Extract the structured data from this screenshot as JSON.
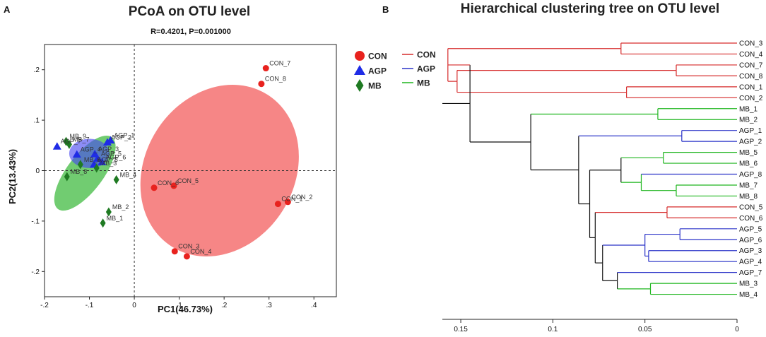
{
  "chart_data": [
    {
      "type": "scatter",
      "panel_label": "A",
      "title": "PCoA on OTU level",
      "subtitle": "R=0.4201, P=0.001000",
      "xlabel": "PC1(46.73%)",
      "ylabel": "PC2(13.43%)",
      "xlim": [
        -0.2,
        0.45
      ],
      "ylim": [
        -0.25,
        0.25
      ],
      "xticks": [
        -0.2,
        -0.1,
        0,
        0.1,
        0.2,
        0.3,
        0.4
      ],
      "yticks": [
        -0.2,
        -0.1,
        0,
        0.1,
        0.2
      ],
      "legend": [
        "CON",
        "AGP",
        "MB"
      ],
      "colors": {
        "CON": "#e8221e",
        "AGP": "#1f2ce6",
        "MB": "#1f7a22"
      },
      "series": [
        {
          "name": "CON",
          "marker": "circle",
          "points": [
            {
              "label": "CON_7",
              "x": 0.293,
              "y": 0.203
            },
            {
              "label": "CON_8",
              "x": 0.283,
              "y": 0.172
            },
            {
              "label": "CON_5",
              "x": 0.088,
              "y": -0.03
            },
            {
              "label": "CON_6",
              "x": 0.044,
              "y": -0.034
            },
            {
              "label": "CON_1",
              "x": 0.32,
              "y": -0.066
            },
            {
              "label": "CON_2",
              "x": 0.342,
              "y": -0.062
            },
            {
              "label": "CON_3",
              "x": 0.09,
              "y": -0.16
            },
            {
              "label": "CON_4",
              "x": 0.117,
              "y": -0.17
            }
          ]
        },
        {
          "name": "AGP",
          "marker": "triangle",
          "points": [
            {
              "label": "AGP_1",
              "x": -0.053,
              "y": 0.06
            },
            {
              "label": "AGP_2",
              "x": -0.06,
              "y": 0.056
            },
            {
              "label": "AGP_3",
              "x": -0.088,
              "y": 0.033
            },
            {
              "label": "AGP_4",
              "x": -0.128,
              "y": 0.032
            },
            {
              "label": "AGP_5",
              "x": -0.082,
              "y": 0.024
            },
            {
              "label": "AGP_6",
              "x": -0.072,
              "y": 0.017
            },
            {
              "label": "AGP_7",
              "x": -0.172,
              "y": 0.048
            },
            {
              "label": "AGP_8",
              "x": -0.09,
              "y": 0.012
            }
          ]
        },
        {
          "name": "MB",
          "marker": "diamond",
          "points": [
            {
              "label": "MB_9",
              "x": -0.152,
              "y": 0.058
            },
            {
              "label": "MB_7",
              "x": -0.145,
              "y": 0.052
            },
            {
              "label": "MB_6",
              "x": -0.12,
              "y": 0.012
            },
            {
              "label": "MB_8",
              "x": -0.15,
              "y": -0.012
            },
            {
              "label": "MB_3",
              "x": -0.084,
              "y": 0.005
            },
            {
              "label": "MB_4",
              "x": -0.04,
              "y": -0.018
            },
            {
              "label": "MB_2",
              "x": -0.057,
              "y": -0.082
            },
            {
              "label": "MB_1",
              "x": -0.07,
              "y": -0.104
            }
          ]
        }
      ],
      "ellipses": [
        {
          "group": "CON",
          "cx": 0.19,
          "cy": 0.0,
          "rx": 0.2,
          "ry": 0.148,
          "angle_deg": -58
        },
        {
          "group": "MB",
          "cx": -0.11,
          "cy": -0.005,
          "rx": 0.1,
          "ry": 0.036,
          "angle_deg": -53
        },
        {
          "group": "AGP",
          "cx": -0.1,
          "cy": 0.034,
          "rx": 0.045,
          "ry": 0.029,
          "angle_deg": 0
        }
      ]
    },
    {
      "type": "dendrogram",
      "panel_label": "B",
      "title": "Hierarchical clustering tree on OTU level",
      "xlim": [
        0.16,
        0
      ],
      "xticks": [
        0.15,
        0.1,
        0.05,
        0
      ],
      "legend": [
        "CON",
        "AGP",
        "MB"
      ],
      "colors": {
        "CON": "#d62a2a",
        "AGP": "#2a33c8",
        "MB": "#1db51d",
        "internal": "#111111"
      },
      "leaves": [
        "CON_3",
        "CON_4",
        "CON_7",
        "CON_8",
        "CON_1",
        "CON_2",
        "MB_1",
        "MB_2",
        "AGP_1",
        "AGP_2",
        "MB_5",
        "MB_6",
        "AGP_8",
        "MB_7",
        "MB_8",
        "CON_5",
        "CON_6",
        "AGP_5",
        "AGP_6",
        "AGP_3",
        "AGP_4",
        "AGP_7",
        "MB_3",
        "MB_4"
      ],
      "merges": [
        {
          "id": "n1",
          "children": [
            "CON_3",
            "CON_4"
          ],
          "height": 0.063,
          "group": "CON"
        },
        {
          "id": "n2",
          "children": [
            "CON_7",
            "CON_8"
          ],
          "height": 0.033,
          "group": "CON"
        },
        {
          "id": "n3",
          "children": [
            "CON_1",
            "CON_2"
          ],
          "height": 0.06,
          "group": "CON"
        },
        {
          "id": "n4",
          "children": [
            "n2",
            "n3"
          ],
          "height": 0.152,
          "group": "CON"
        },
        {
          "id": "n5",
          "children": [
            "n1",
            "n4"
          ],
          "height": 0.157,
          "group": "CON"
        },
        {
          "id": "n6",
          "children": [
            "MB_1",
            "MB_2"
          ],
          "height": 0.043,
          "group": "MB"
        },
        {
          "id": "n7",
          "children": [
            "AGP_1",
            "AGP_2"
          ],
          "height": 0.03,
          "group": "AGP"
        },
        {
          "id": "n8",
          "children": [
            "MB_5",
            "MB_6"
          ],
          "height": 0.04,
          "group": "MB"
        },
        {
          "id": "n9",
          "children": [
            "MB_7",
            "MB_8"
          ],
          "height": 0.033,
          "group": "MB"
        },
        {
          "id": "n10",
          "children": [
            "AGP_8",
            "n9"
          ],
          "height": 0.052,
          "group": "MB"
        },
        {
          "id": "n11",
          "children": [
            "n8",
            "n10"
          ],
          "height": 0.063
        },
        {
          "id": "n12",
          "children": [
            "CON_5",
            "CON_6"
          ],
          "height": 0.038,
          "group": "CON"
        },
        {
          "id": "n13",
          "children": [
            "AGP_5",
            "AGP_6"
          ],
          "height": 0.031,
          "group": "AGP"
        },
        {
          "id": "n14",
          "children": [
            "AGP_3",
            "AGP_4"
          ],
          "height": 0.048,
          "group": "AGP"
        },
        {
          "id": "n15",
          "children": [
            "n13",
            "n14"
          ],
          "height": 0.05,
          "group": "AGP"
        },
        {
          "id": "n16",
          "children": [
            "MB_3",
            "MB_4"
          ],
          "height": 0.047,
          "group": "MB"
        },
        {
          "id": "n17",
          "children": [
            "AGP_7",
            "n16"
          ],
          "height": 0.065
        },
        {
          "id": "n18",
          "children": [
            "n15",
            "n17"
          ],
          "height": 0.073
        },
        {
          "id": "n19",
          "children": [
            "n12",
            "n18"
          ],
          "height": 0.077
        },
        {
          "id": "n20",
          "children": [
            "n11",
            "n19"
          ],
          "height": 0.08
        },
        {
          "id": "n21",
          "children": [
            "n7",
            "n20"
          ],
          "height": 0.086
        },
        {
          "id": "n22",
          "children": [
            "n6",
            "n21"
          ],
          "height": 0.112
        },
        {
          "id": "n23",
          "children": [
            "n5",
            "n22"
          ],
          "height": 0.145
        }
      ]
    }
  ]
}
